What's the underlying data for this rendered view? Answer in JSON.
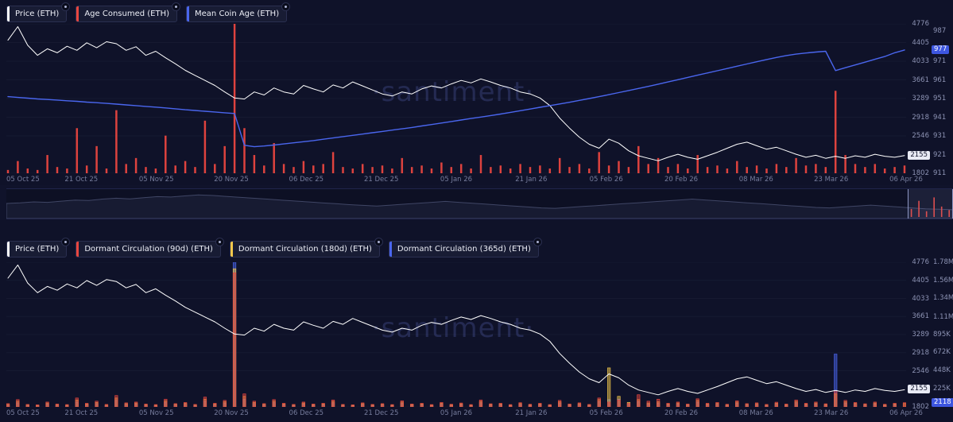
{
  "app": {
    "watermark": "·santiment·"
  },
  "colors": {
    "background": "#10132b",
    "panel": "#0f1229",
    "price": "#ffffff",
    "age_consumed": "#e8463f",
    "mean_coin_age": "#4a66ee",
    "dormant_90d": "#e8463f",
    "dormant_180d": "#f3c84b",
    "dormant_365d": "#4a66ee",
    "badge_blue_bg": "#3d56e0",
    "badge_white_bg": "#e8eaf4"
  },
  "dates": [
    "05 Oct 25",
    "21 Oct 25",
    "05 Nov 25",
    "20 Nov 25",
    "06 Dec 25",
    "21 Dec 25",
    "05 Jan 26",
    "21 Jan 26",
    "05 Feb 26",
    "20 Feb 26",
    "08 Mar 26",
    "23 Mar 26",
    "06 Apr 26"
  ],
  "top_panel": {
    "legends": [
      {
        "id": "price",
        "label": "Price (ETH)",
        "color": "#ffffff"
      },
      {
        "id": "age-consumed",
        "label": "Age Consumed (ETH)",
        "color": "#e8463f"
      },
      {
        "id": "mean-coin-age",
        "label": "Mean Coin Age (ETH)",
        "color": "#4a66ee"
      }
    ]
  },
  "bottom_panel": {
    "legends": [
      {
        "id": "price",
        "label": "Price (ETH)",
        "color": "#ffffff"
      },
      {
        "id": "dormant-90d",
        "label": "Dormant Circulation (90d) (ETH)",
        "color": "#e8463f"
      },
      {
        "id": "dormant-180d",
        "label": "Dormant Circulation (180d) (ETH)",
        "color": "#f3c84b"
      },
      {
        "id": "dormant-365d",
        "label": "Dormant Circulation (365d) (ETH)",
        "color": "#4a66ee"
      }
    ]
  },
  "navigator": {
    "spark": [
      55,
      58,
      62,
      60,
      65,
      70,
      68,
      74,
      78,
      75,
      80,
      85,
      83,
      88,
      92,
      90,
      86,
      82,
      78,
      74,
      70,
      66,
      62,
      58,
      54,
      50,
      47,
      44,
      48,
      52,
      56,
      60,
      64,
      60,
      56,
      52,
      48,
      44,
      40,
      36,
      34,
      38,
      42,
      46,
      50,
      54,
      58,
      62,
      66,
      70,
      74,
      70,
      66,
      62,
      58,
      54,
      50,
      46,
      42,
      38,
      36,
      40,
      44,
      48,
      44,
      40,
      36,
      32,
      30,
      28
    ],
    "selection": {
      "from": 0.952,
      "to": 1.0
    },
    "bars": [
      35,
      70,
      25,
      85,
      45,
      30
    ]
  },
  "chart_data": [
    {
      "type": "line",
      "title": "Price (ETH), Age Consumed (ETH), Mean Coin Age (ETH)",
      "x_tick_labels": [
        "05 Oct 25",
        "21 Oct 25",
        "05 Nov 25",
        "20 Nov 25",
        "06 Dec 25",
        "21 Dec 25",
        "05 Jan 26",
        "21 Jan 26",
        "05 Feb 26",
        "20 Feb 26",
        "08 Mar 26",
        "23 Mar 26",
        "06 Apr 26"
      ],
      "axes": {
        "price": {
          "min": 1802,
          "max": 4776,
          "ticks": [
            {
              "v": 4776,
              "label": "4776"
            },
            {
              "v": 4405,
              "label": "4405"
            },
            {
              "v": 4033,
              "label": "4033"
            },
            {
              "v": 3661,
              "label": "3661"
            },
            {
              "v": 3289,
              "label": "3289"
            },
            {
              "v": 2918,
              "label": "2918"
            },
            {
              "v": 2546,
              "label": "2546"
            },
            {
              "v": 1802,
              "label": "1802"
            }
          ],
          "badge": {
            "v": 2155,
            "label": "2155",
            "style": "white"
          }
        },
        "coin_age": {
          "min": 911,
          "max": 991,
          "ticks": [
            {
              "v": 987,
              "label": "987"
            },
            {
              "v": 971,
              "label": "971"
            },
            {
              "v": 961,
              "label": "961"
            },
            {
              "v": 951,
              "label": "951"
            },
            {
              "v": 941,
              "label": "941"
            },
            {
              "v": 931,
              "label": "931"
            },
            {
              "v": 921,
              "label": "921"
            },
            {
              "v": 911,
              "label": "911"
            }
          ],
          "badge": {
            "v": 977,
            "label": "977",
            "style": "blue"
          }
        },
        "age_pct": {
          "min": 0,
          "max": 100
        }
      },
      "series": [
        {
          "name": "Price (ETH)",
          "type": "line",
          "axis": "price",
          "color": "#ffffff",
          "values": [
            4450,
            4720,
            4350,
            4150,
            4280,
            4200,
            4330,
            4250,
            4400,
            4300,
            4420,
            4380,
            4250,
            4320,
            4150,
            4230,
            4100,
            3980,
            3850,
            3750,
            3650,
            3550,
            3420,
            3300,
            3280,
            3420,
            3360,
            3500,
            3420,
            3380,
            3550,
            3480,
            3420,
            3560,
            3500,
            3620,
            3540,
            3460,
            3380,
            3340,
            3420,
            3380,
            3480,
            3540,
            3500,
            3580,
            3650,
            3600,
            3680,
            3620,
            3550,
            3500,
            3420,
            3380,
            3300,
            3150,
            2900,
            2700,
            2520,
            2380,
            2300,
            2480,
            2400,
            2250,
            2150,
            2100,
            2050,
            2120,
            2180,
            2120,
            2080,
            2150,
            2220,
            2300,
            2380,
            2420,
            2350,
            2280,
            2320,
            2250,
            2180,
            2120,
            2160,
            2100,
            2140,
            2100,
            2150,
            2120,
            2180,
            2140,
            2120,
            2155
          ]
        },
        {
          "name": "Age Consumed (ETH)",
          "type": "bar",
          "axis": "age_pct",
          "color": "#e8463f",
          "values": [
            2,
            8,
            3,
            2,
            12,
            4,
            3,
            30,
            5,
            18,
            3,
            42,
            6,
            10,
            4,
            3,
            25,
            5,
            8,
            4,
            35,
            6,
            18,
            100,
            30,
            12,
            5,
            20,
            6,
            4,
            8,
            5,
            6,
            14,
            4,
            3,
            6,
            4,
            5,
            3,
            10,
            4,
            5,
            3,
            7,
            4,
            6,
            3,
            12,
            4,
            5,
            3,
            6,
            4,
            5,
            3,
            10,
            4,
            6,
            3,
            14,
            5,
            8,
            4,
            18,
            6,
            10,
            4,
            6,
            3,
            12,
            4,
            5,
            3,
            8,
            4,
            5,
            3,
            6,
            4,
            10,
            5,
            6,
            4,
            55,
            12,
            6,
            4,
            6,
            3,
            4,
            5
          ]
        },
        {
          "name": "Mean Coin Age (ETH)",
          "type": "line",
          "axis": "coin_age",
          "color": "#4a66ee",
          "values": [
            952,
            951.6,
            951.2,
            950.8,
            950.5,
            950.2,
            949.8,
            949.5,
            949.1,
            948.8,
            948.4,
            948,
            947.6,
            947.2,
            946.8,
            946.4,
            946,
            945.5,
            945,
            944.6,
            944.2,
            943.8,
            943.4,
            943,
            926,
            925.2,
            925.6,
            926.1,
            926.7,
            927.3,
            927.9,
            928.5,
            929.2,
            929.9,
            930.6,
            931.3,
            932,
            932.7,
            933.4,
            934.1,
            934.8,
            935.5,
            936.3,
            937.1,
            937.9,
            938.7,
            939.5,
            940.3,
            941.1,
            941.9,
            942.7,
            943.6,
            944.5,
            945.4,
            946.3,
            947.2,
            948.1,
            949,
            950,
            951,
            952,
            953.1,
            954.2,
            955.3,
            956.4,
            957.5,
            958.7,
            959.9,
            961.1,
            962.3,
            963.5,
            964.7,
            965.9,
            967.1,
            968.3,
            969.5,
            970.7,
            971.9,
            973,
            974,
            974.8,
            975.4,
            975.9,
            976.3,
            966,
            967.5,
            969,
            970.5,
            972,
            973.5,
            975.5,
            977
          ]
        }
      ]
    },
    {
      "type": "line",
      "title": "Price (ETH), Dormant Circulation 90d / 180d / 365d (ETH)",
      "x_tick_labels": [
        "05 Oct 25",
        "21 Oct 25",
        "05 Nov 25",
        "20 Nov 25",
        "06 Dec 25",
        "21 Dec 25",
        "05 Jan 26",
        "21 Jan 26",
        "05 Feb 26",
        "20 Feb 26",
        "08 Mar 26",
        "23 Mar 26",
        "06 Apr 26"
      ],
      "axes": {
        "price": {
          "min": 1802,
          "max": 4776,
          "ticks": [
            {
              "v": 4776,
              "label": "4776"
            },
            {
              "v": 4405,
              "label": "4405"
            },
            {
              "v": 4033,
              "label": "4033"
            },
            {
              "v": 3661,
              "label": "3661"
            },
            {
              "v": 3289,
              "label": "3289"
            },
            {
              "v": 2918,
              "label": "2918"
            },
            {
              "v": 2546,
              "label": "2546"
            },
            {
              "v": 1802,
              "label": "1802"
            }
          ],
          "badge": {
            "v": 2155,
            "label": "2155",
            "style": "white"
          }
        },
        "dormant": {
          "min": 0,
          "max": 1780000,
          "ticks": [
            {
              "v": 1780000,
              "label": "1.78M"
            },
            {
              "v": 1560000,
              "label": "1.56M"
            },
            {
              "v": 1340000,
              "label": "1.34M"
            },
            {
              "v": 1110000,
              "label": "1.11M"
            },
            {
              "v": 895000,
              "label": "895K"
            },
            {
              "v": 672000,
              "label": "672K"
            },
            {
              "v": 448000,
              "label": "448K"
            },
            {
              "v": 225000,
              "label": "225K"
            }
          ],
          "badge": {
            "v": 0,
            "label": "2118",
            "style": "blue"
          }
        }
      },
      "series": [
        {
          "name": "Price (ETH)",
          "type": "line",
          "axis": "price",
          "color": "#ffffff",
          "values": [
            4450,
            4720,
            4350,
            4150,
            4280,
            4200,
            4330,
            4250,
            4400,
            4300,
            4420,
            4380,
            4250,
            4320,
            4150,
            4230,
            4100,
            3980,
            3850,
            3750,
            3650,
            3550,
            3420,
            3300,
            3280,
            3420,
            3360,
            3500,
            3420,
            3380,
            3550,
            3480,
            3420,
            3560,
            3500,
            3620,
            3540,
            3460,
            3380,
            3340,
            3420,
            3380,
            3480,
            3540,
            3500,
            3580,
            3650,
            3600,
            3680,
            3620,
            3550,
            3500,
            3420,
            3380,
            3300,
            3150,
            2900,
            2700,
            2520,
            2380,
            2300,
            2480,
            2400,
            2250,
            2150,
            2100,
            2050,
            2120,
            2180,
            2120,
            2080,
            2150,
            2220,
            2300,
            2380,
            2420,
            2350,
            2280,
            2320,
            2250,
            2180,
            2120,
            2160,
            2100,
            2140,
            2100,
            2150,
            2120,
            2180,
            2140,
            2120,
            2155
          ]
        },
        {
          "name": "Dormant Circulation (90d) (ETH)",
          "type": "bar",
          "axis": "dormant",
          "color": "#e8463f",
          "values": [
            40000,
            90000,
            30000,
            25000,
            60000,
            35000,
            28000,
            110000,
            45000,
            70000,
            30000,
            140000,
            50000,
            60000,
            35000,
            28000,
            95000,
            40000,
            55000,
            30000,
            120000,
            45000,
            80000,
            1650000,
            160000,
            70000,
            40000,
            90000,
            45000,
            30000,
            60000,
            35000,
            45000,
            85000,
            30000,
            25000,
            50000,
            30000,
            40000,
            28000,
            75000,
            35000,
            45000,
            28000,
            55000,
            32000,
            48000,
            28000,
            85000,
            38000,
            45000,
            28000,
            52000,
            32000,
            45000,
            28000,
            80000,
            35000,
            50000,
            30000,
            110000,
            60000,
            85000,
            45000,
            150000,
            70000,
            95000,
            45000,
            60000,
            35000,
            100000,
            45000,
            55000,
            32000,
            75000,
            40000,
            50000,
            30000,
            58000,
            35000,
            85000,
            45000,
            60000,
            38000,
            200000,
            80000,
            55000,
            38000,
            60000,
            32000,
            45000,
            52000
          ]
        },
        {
          "name": "Dormant Circulation (180d) (ETH)",
          "type": "bar",
          "axis": "dormant",
          "color": "#f3c84b",
          "values": [
            30000,
            70000,
            25000,
            20000,
            48000,
            28000,
            22000,
            85000,
            36000,
            55000,
            24000,
            110000,
            40000,
            48000,
            28000,
            22000,
            75000,
            32000,
            44000,
            24000,
            95000,
            36000,
            64000,
            1700000,
            130000,
            56000,
            32000,
            72000,
            36000,
            24000,
            48000,
            28000,
            36000,
            68000,
            24000,
            20000,
            40000,
            24000,
            32000,
            22000,
            60000,
            28000,
            36000,
            22000,
            44000,
            26000,
            38000,
            22000,
            68000,
            30000,
            36000,
            22000,
            42000,
            26000,
            36000,
            22000,
            64000,
            28000,
            40000,
            24000,
            90000,
            480000,
            130000,
            56000,
            90000,
            48000,
            64000,
            36000,
            48000,
            28000,
            80000,
            36000,
            44000,
            26000,
            60000,
            32000,
            40000,
            24000,
            46000,
            28000,
            68000,
            36000,
            48000,
            30000,
            160000,
            64000,
            44000,
            30000,
            48000,
            26000,
            36000,
            42000
          ]
        },
        {
          "name": "Dormant Circulation (365d) (ETH)",
          "type": "bar",
          "axis": "dormant",
          "color": "#4a66ee",
          "values": [
            20000,
            50000,
            18000,
            15000,
            35000,
            20000,
            16000,
            60000,
            26000,
            40000,
            17000,
            80000,
            30000,
            35000,
            20000,
            16000,
            55000,
            24000,
            32000,
            17000,
            70000,
            26000,
            47000,
            1780000,
            95000,
            41000,
            23000,
            53000,
            26000,
            17000,
            35000,
            20000,
            26000,
            50000,
            17000,
            15000,
            29000,
            17000,
            23000,
            16000,
            44000,
            20000,
            26000,
            16000,
            32000,
            19000,
            28000,
            16000,
            50000,
            22000,
            26000,
            16000,
            31000,
            19000,
            26000,
            16000,
            47000,
            20000,
            29000,
            17000,
            66000,
            90000,
            95000,
            41000,
            66000,
            35000,
            47000,
            26000,
            35000,
            20000,
            59000,
            26000,
            32000,
            19000,
            44000,
            23000,
            29000,
            17000,
            34000,
            20000,
            50000,
            26000,
            35000,
            22000,
            650000,
            47000,
            32000,
            22000,
            35000,
            19000,
            26000,
            2118
          ]
        }
      ]
    }
  ]
}
